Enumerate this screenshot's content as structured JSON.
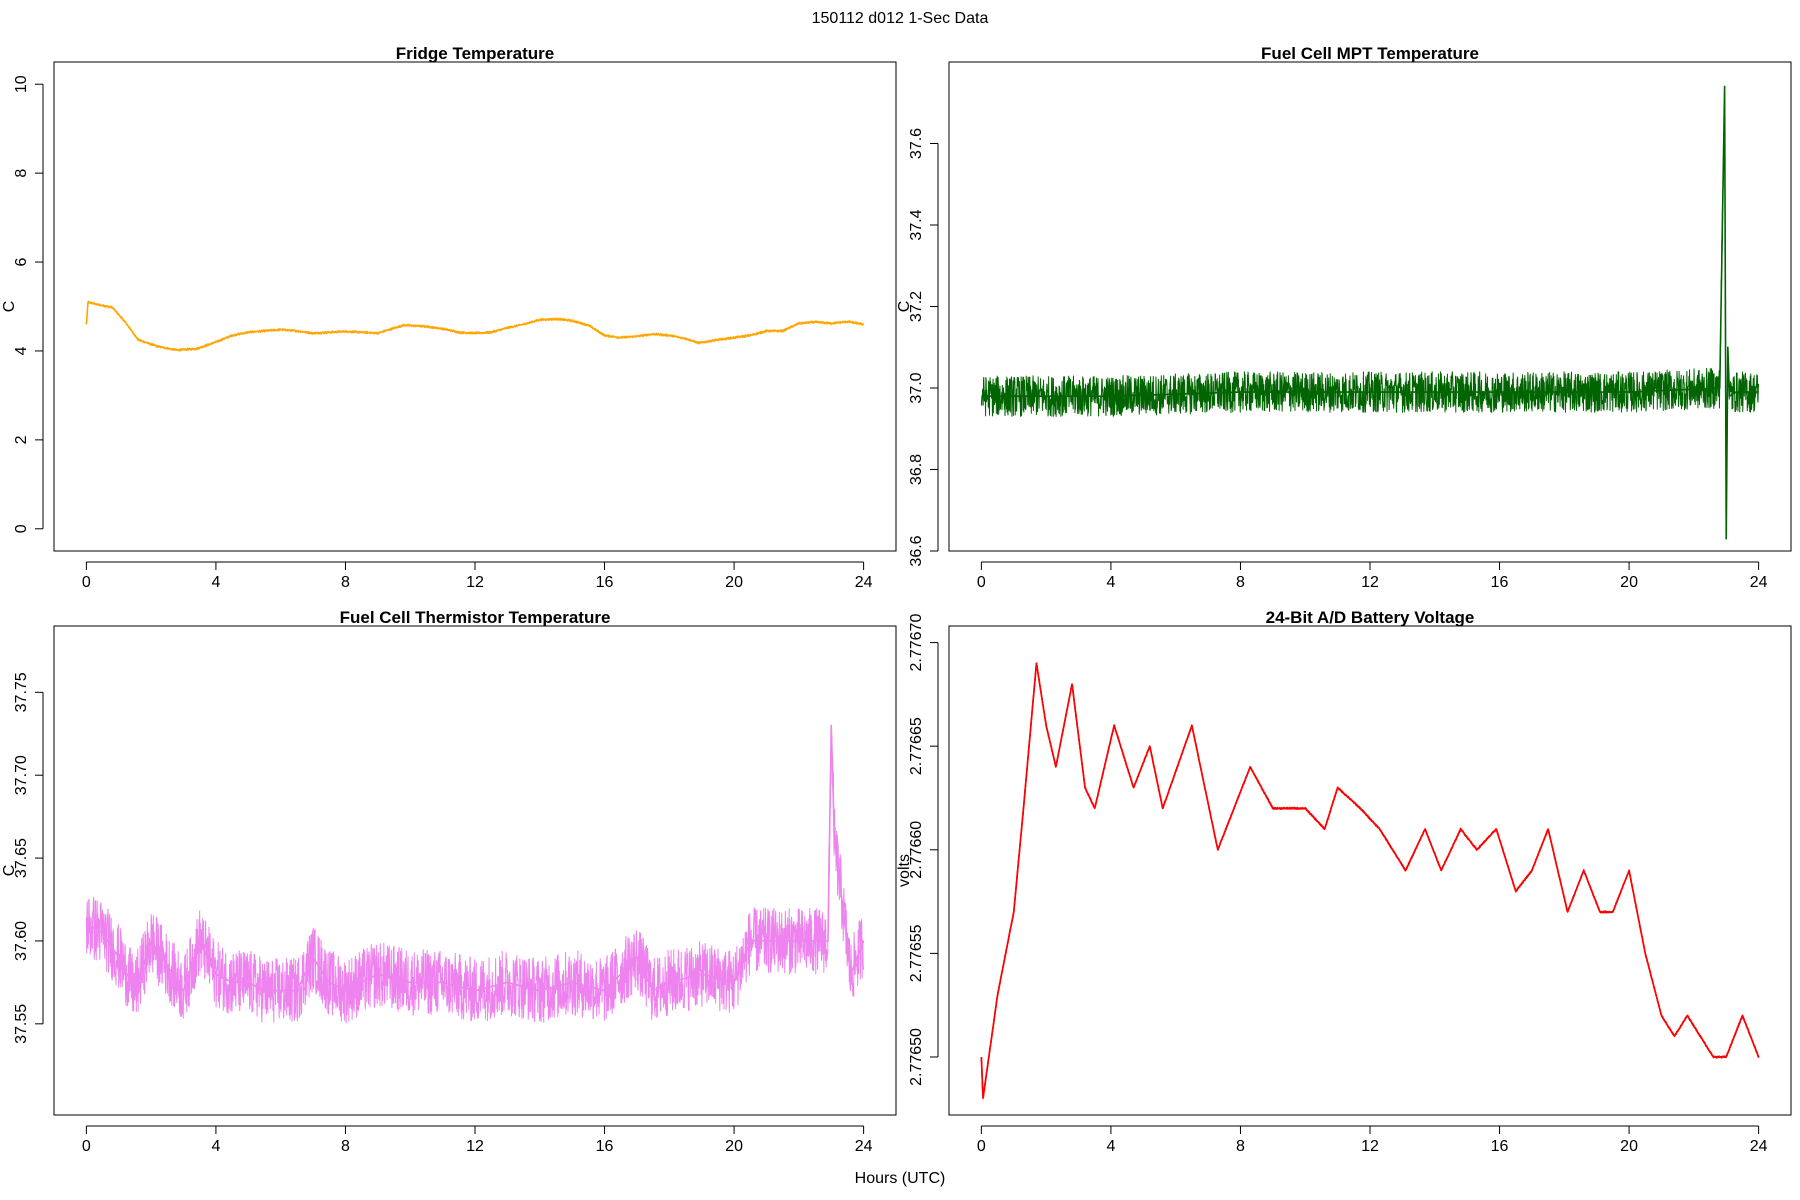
{
  "figure": {
    "suptitle": "150112   d012   1-Sec Data",
    "xlabel": "Hours (UTC)"
  },
  "chart_data": [
    {
      "type": "line",
      "title": "Fridge Temperature",
      "xlabel": "Hours (UTC)",
      "ylabel": "C",
      "xlim": [
        -1,
        25
      ],
      "ylim": [
        -0.5,
        10.5
      ],
      "xticks": [
        "0",
        "4",
        "8",
        "12",
        "16",
        "20",
        "24"
      ],
      "yticks": [
        "0",
        "2",
        "4",
        "6",
        "8",
        "10"
      ],
      "color": "#FFA500",
      "noise": 0.03,
      "x": [
        0,
        0.05,
        0.3,
        0.8,
        1.2,
        1.6,
        2.2,
        2.8,
        3.4,
        4,
        4.5,
        5,
        5.5,
        6,
        6.5,
        7,
        7.5,
        8,
        8.5,
        9,
        9.8,
        10.5,
        11,
        11.5,
        12,
        12.5,
        13,
        13.5,
        14,
        14.5,
        15,
        15.5,
        16,
        16.5,
        17,
        17.5,
        18,
        18.5,
        18.9,
        19.5,
        20,
        20.5,
        21,
        21.5,
        22,
        22.5,
        23,
        23.5,
        24
      ],
      "values": [
        4.6,
        5.1,
        5.05,
        4.98,
        4.65,
        4.25,
        4.1,
        4.02,
        4.05,
        4.2,
        4.35,
        4.42,
        4.45,
        4.48,
        4.45,
        4.4,
        4.42,
        4.44,
        4.42,
        4.4,
        4.58,
        4.55,
        4.5,
        4.42,
        4.4,
        4.42,
        4.52,
        4.6,
        4.7,
        4.72,
        4.68,
        4.58,
        4.35,
        4.3,
        4.33,
        4.38,
        4.35,
        4.28,
        4.18,
        4.25,
        4.3,
        4.35,
        4.45,
        4.45,
        4.62,
        4.65,
        4.62,
        4.66,
        4.6
      ]
    },
    {
      "type": "line",
      "title": "Fuel Cell MPT Temperature",
      "xlabel": "Hours (UTC)",
      "ylabel": "C",
      "xlim": [
        -1,
        25
      ],
      "ylim": [
        36.6,
        37.8
      ],
      "xticks": [
        "0",
        "4",
        "8",
        "12",
        "16",
        "20",
        "24"
      ],
      "yticks": [
        "36.6",
        "36.8",
        "37.0",
        "37.2",
        "37.4",
        "37.6"
      ],
      "color": "#006400",
      "noise": 0.05,
      "x": [
        0,
        4,
        8,
        12,
        16,
        20,
        22.8,
        22.95,
        23.0,
        23.05,
        23.1,
        23.3,
        24
      ],
      "values": [
        36.98,
        36.98,
        36.99,
        36.99,
        36.99,
        36.99,
        37.0,
        37.74,
        36.63,
        37.1,
        36.98,
        36.99,
        36.99
      ]
    },
    {
      "type": "line",
      "title": "Fuel Cell Thermistor Temperature",
      "xlabel": "Hours (UTC)",
      "ylabel": "C",
      "xlim": [
        -1,
        25
      ],
      "ylim": [
        37.495,
        37.79
      ],
      "xticks": [
        "0",
        "4",
        "8",
        "12",
        "16",
        "20",
        "24"
      ],
      "yticks": [
        "37.55",
        "37.60",
        "37.65",
        "37.70",
        "37.75"
      ],
      "color": "#EE82EE",
      "noise": 0.02,
      "x": [
        0,
        0.5,
        1,
        1.5,
        2,
        2.5,
        3,
        3.5,
        4,
        4.5,
        5,
        5.5,
        6,
        6.5,
        7,
        7.5,
        8,
        9,
        10,
        11,
        12,
        13,
        14,
        15,
        16,
        17,
        17.5,
        18,
        19,
        20,
        20.5,
        21.5,
        22.5,
        22.9,
        23.0,
        23.1,
        23.3,
        23.6,
        24
      ],
      "values": [
        37.61,
        37.605,
        37.59,
        37.57,
        37.6,
        37.585,
        37.57,
        37.6,
        37.58,
        37.575,
        37.575,
        37.57,
        37.57,
        37.57,
        37.59,
        37.575,
        37.57,
        37.58,
        37.575,
        37.575,
        37.57,
        37.575,
        37.57,
        37.575,
        37.57,
        37.59,
        37.57,
        37.575,
        37.58,
        37.575,
        37.6,
        37.6,
        37.6,
        37.6,
        37.73,
        37.66,
        37.63,
        37.58,
        37.6
      ]
    },
    {
      "type": "line",
      "title": "24-Bit A/D Battery Voltage",
      "xlabel": "Hours (UTC)",
      "ylabel": "volts",
      "xlim": [
        -1,
        25
      ],
      "ylim": [
        2.776472,
        2.776708
      ],
      "xticks": [
        "0",
        "4",
        "8",
        "12",
        "16",
        "20",
        "24"
      ],
      "yticks": [
        "2.77650",
        "2.77655",
        "2.77660",
        "2.77665",
        "2.77670"
      ],
      "color": "#FF0000",
      "noise": 4e-07,
      "x": [
        0,
        0.05,
        0.5,
        1.0,
        1.3,
        1.7,
        2.0,
        2.3,
        2.8,
        3.2,
        3.5,
        4.1,
        4.7,
        5.2,
        5.6,
        6.5,
        7.3,
        8.3,
        9.0,
        10.0,
        10.6,
        11.0,
        11.7,
        12.3,
        13.1,
        13.7,
        14.2,
        14.8,
        15.3,
        15.9,
        16.5,
        17.0,
        17.5,
        18.1,
        18.6,
        19.1,
        19.5,
        20.0,
        20.5,
        21.0,
        21.4,
        21.8,
        22.2,
        22.6,
        23.0,
        23.5,
        24.0
      ],
      "values": [
        2.7765,
        2.77648,
        2.77653,
        2.77657,
        2.77662,
        2.77669,
        2.77666,
        2.77664,
        2.77668,
        2.77663,
        2.77662,
        2.77666,
        2.77663,
        2.77665,
        2.77662,
        2.77666,
        2.7766,
        2.77664,
        2.77662,
        2.77662,
        2.77661,
        2.77663,
        2.77662,
        2.77661,
        2.77659,
        2.77661,
        2.77659,
        2.77661,
        2.7766,
        2.77661,
        2.77658,
        2.77659,
        2.77661,
        2.77657,
        2.77659,
        2.77657,
        2.77657,
        2.77659,
        2.77655,
        2.77652,
        2.77651,
        2.77652,
        2.77651,
        2.7765,
        2.7765,
        2.77652,
        2.7765
      ]
    }
  ]
}
